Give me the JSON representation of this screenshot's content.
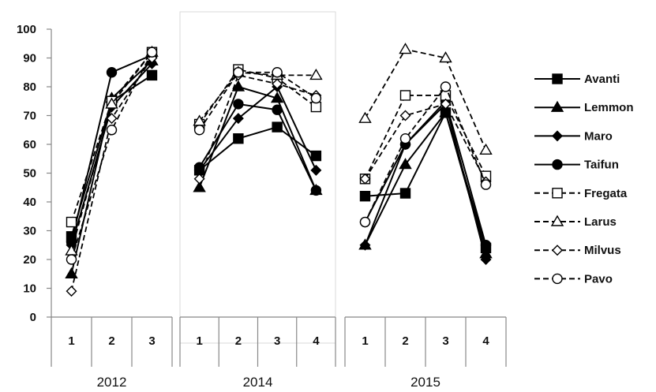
{
  "chart_data": {
    "type": "line",
    "y_ticks": [
      "0",
      "10",
      "20",
      "30",
      "40",
      "50",
      "60",
      "70",
      "80",
      "90",
      "100"
    ],
    "ylim": [
      0,
      100
    ],
    "grid": false,
    "legend_position": "right",
    "panels": [
      {
        "year": "2012",
        "categories": [
          "1",
          "2",
          "3"
        ],
        "series": [
          {
            "name": "Avanti",
            "values": [
              28,
              75,
              84
            ]
          },
          {
            "name": "Lemmon",
            "values": [
              15,
              76,
              89
            ]
          },
          {
            "name": "Maro",
            "values": [
              25,
              73,
              88
            ]
          },
          {
            "name": "Taifun",
            "values": [
              26,
              85,
              91
            ]
          },
          {
            "name": "Fregata",
            "values": [
              33,
              75,
              92
            ]
          },
          {
            "name": "Larus",
            "values": [
              23,
              74,
              92
            ]
          },
          {
            "name": "Milvus",
            "values": [
              9,
              69,
              90
            ]
          },
          {
            "name": "Pavo",
            "values": [
              20,
              65,
              92
            ]
          }
        ]
      },
      {
        "year": "2014",
        "categories": [
          "1",
          "2",
          "3",
          "4"
        ],
        "series": [
          {
            "name": "Avanti",
            "values": [
              51,
              62,
              66,
              56
            ]
          },
          {
            "name": "Lemmon",
            "values": [
              45,
              80,
              76,
              44
            ]
          },
          {
            "name": "Maro",
            "values": [
              51,
              69,
              80,
              51
            ]
          },
          {
            "name": "Taifun",
            "values": [
              52,
              74,
              72,
              44
            ]
          },
          {
            "name": "Fregata",
            "values": [
              67,
              86,
              83,
              73
            ]
          },
          {
            "name": "Larus",
            "values": [
              68,
              85,
              84,
              84
            ]
          },
          {
            "name": "Milvus",
            "values": [
              48,
              84,
              81,
              77
            ]
          },
          {
            "name": "Pavo",
            "values": [
              65,
              85,
              85,
              76
            ]
          }
        ]
      },
      {
        "year": "2015",
        "categories": [
          "1",
          "2",
          "3",
          "4"
        ],
        "series": [
          {
            "name": "Avanti",
            "values": [
              42,
              43,
              71,
              24
            ]
          },
          {
            "name": "Lemmon",
            "values": [
              25,
              53,
              71,
              22
            ]
          },
          {
            "name": "Maro",
            "values": [
              25,
              60,
              74,
              20
            ]
          },
          {
            "name": "Taifun",
            "values": [
              33,
              60,
              75,
              25
            ]
          },
          {
            "name": "Fregata",
            "values": [
              48,
              77,
              77,
              49
            ]
          },
          {
            "name": "Larus",
            "values": [
              69,
              93,
              90,
              58
            ]
          },
          {
            "name": "Milvus",
            "values": [
              48,
              70,
              74,
              47
            ]
          },
          {
            "name": "Pavo",
            "values": [
              33,
              62,
              80,
              46
            ]
          }
        ]
      }
    ],
    "legend": [
      {
        "name": "Avanti",
        "marker": "square",
        "filled": true,
        "dash": false
      },
      {
        "name": "Lemmon",
        "marker": "triangle",
        "filled": true,
        "dash": false
      },
      {
        "name": "Maro",
        "marker": "diamond",
        "filled": true,
        "dash": false
      },
      {
        "name": "Taifun",
        "marker": "circle",
        "filled": true,
        "dash": false
      },
      {
        "name": "Fregata",
        "marker": "square",
        "filled": false,
        "dash": true
      },
      {
        "name": "Larus",
        "marker": "triangle",
        "filled": false,
        "dash": true
      },
      {
        "name": "Milvus",
        "marker": "diamond",
        "filled": false,
        "dash": true
      },
      {
        "name": "Pavo",
        "marker": "circle",
        "filled": false,
        "dash": true
      }
    ]
  }
}
